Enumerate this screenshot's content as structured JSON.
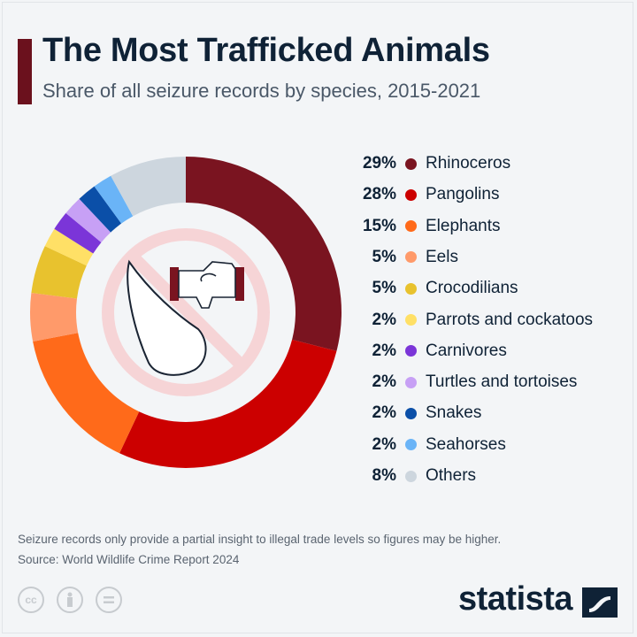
{
  "header": {
    "title": "The Most Trafficked Animals",
    "subtitle": "Share of all seizure records by species, 2015-2021",
    "accent_color": "#6b111d"
  },
  "chart_data": {
    "type": "pie",
    "variant": "donut",
    "title": "The Most Trafficked Animals",
    "subtitle": "Share of all seizure records by species, 2015-2021",
    "unit": "%",
    "legend_placement": "right",
    "center_icon": "no-trafficking-icon",
    "slices": [
      {
        "label": "Rhinoceros",
        "value": 29,
        "display": "29%",
        "color": "#7a1420"
      },
      {
        "label": "Pangolins",
        "value": 28,
        "display": "28%",
        "color": "#cc0000"
      },
      {
        "label": "Elephants",
        "value": 15,
        "display": "15%",
        "color": "#ff6a1a"
      },
      {
        "label": "Eels",
        "value": 5,
        "display": "5%",
        "color": "#ff9a6a"
      },
      {
        "label": "Crocodilians",
        "value": 5,
        "display": "5%",
        "color": "#e8c22e"
      },
      {
        "label": "Parrots and cockatoos",
        "value": 2,
        "display": "2%",
        "color": "#ffe066"
      },
      {
        "label": "Carnivores",
        "value": 2,
        "display": "2%",
        "color": "#7b35d8"
      },
      {
        "label": "Turtles and tortoises",
        "value": 2,
        "display": "2%",
        "color": "#c7a0f5"
      },
      {
        "label": "Snakes",
        "value": 2,
        "display": "2%",
        "color": "#0b4fa8"
      },
      {
        "label": "Seahorses",
        "value": 2,
        "display": "2%",
        "color": "#6ab4f7"
      },
      {
        "label": "Others",
        "value": 8,
        "display": "8%",
        "color": "#cdd6de"
      }
    ]
  },
  "footer": {
    "note": "Seizure records only provide a partial insight to illegal trade levels so figures may be higher.",
    "source": "Source: World Wildlife Crime Report 2024",
    "license_icons": [
      "cc-icon",
      "by-icon",
      "nd-icon"
    ],
    "cc_text": "cc",
    "brand": "statista"
  }
}
